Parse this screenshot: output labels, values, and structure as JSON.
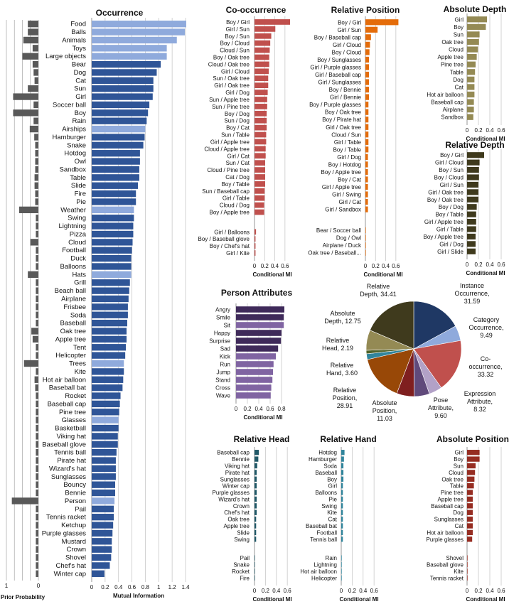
{
  "chart_data": [
    {
      "type": "bar",
      "panel": "prior",
      "xlabel": "Prior Probability",
      "xlim": [
        1,
        0
      ],
      "xticks": [
        "1",
        "0"
      ],
      "grid": true,
      "color": "#595959",
      "categories": [
        "Food",
        "Balls",
        "Animals",
        "Toys",
        "Large objects",
        "Bear",
        "Dog",
        "Cat",
        "Sun",
        "Girl",
        "Soccer ball",
        "Boy",
        "Rain",
        "Airships",
        "Hamburger",
        "Snake",
        "Hotdog",
        "Owl",
        "Sandbox",
        "Table",
        "Slide",
        "Fire",
        "Pie",
        "Weather",
        "Swing",
        "Lightning",
        "Pizza",
        "Cloud",
        "Football",
        "Duck",
        "Balloons",
        "Hats",
        "Grill",
        "Beach ball",
        "Airplane",
        "Frisbee",
        "Soda",
        "Baseball",
        "Oak tree",
        "Apple tree",
        "Tent",
        "Helicopter",
        "Trees",
        "Kite",
        "Hot air balloon",
        "Baseball bat",
        "Rocket",
        "Baseball cap",
        "Pine tree",
        "Glasses",
        "Basketball",
        "Viking hat",
        "Baseball glove",
        "Tennis ball",
        "Pirate hat",
        "Wizard's hat",
        "Sunglasses",
        "Bouncy",
        "Bennie",
        "Person",
        "Pail",
        "Tennis racket",
        "Ketchup",
        "Purple glasses",
        "Mustard",
        "Crown",
        "Shovel",
        "Chef's hat",
        "Winter cap"
      ],
      "values": [
        0.33,
        0.33,
        0.47,
        0.18,
        0.5,
        0.18,
        0.15,
        0.12,
        0.33,
        0.79,
        0.15,
        0.79,
        0.15,
        0.27,
        0.13,
        0.1,
        0.1,
        0.1,
        0.1,
        0.12,
        0.12,
        0.1,
        0.1,
        0.6,
        0.08,
        0.08,
        0.08,
        0.25,
        0.08,
        0.08,
        0.08,
        0.33,
        0.08,
        0.08,
        0.08,
        0.08,
        0.08,
        0.08,
        0.22,
        0.18,
        0.08,
        0.08,
        0.45,
        0.08,
        0.12,
        0.1,
        0.08,
        0.08,
        0.08,
        0.08,
        0.08,
        0.08,
        0.08,
        0.08,
        0.08,
        0.08,
        0.08,
        0.08,
        0.08,
        0.83,
        0.08,
        0.08,
        0.08,
        0.08,
        0.08,
        0.08,
        0.08,
        0.08,
        0.08
      ]
    },
    {
      "type": "bar",
      "panel": "occurrence",
      "title": "Occurrence",
      "xlabel": "Mutual Information",
      "xlim": [
        0,
        1.4
      ],
      "xticks": [
        "0",
        "0.2",
        "0.4",
        "0.6",
        "0.8",
        "1",
        "1.2",
        "1.4"
      ],
      "grid": true,
      "dark_color": "#2f5597",
      "light_color": "#8faadc",
      "light_categories": [
        "Food",
        "Balls",
        "Animals",
        "Toys",
        "Large objects",
        "Airships",
        "Weather",
        "Hats",
        "Trees",
        "Glasses",
        "Person"
      ],
      "categories": [
        "Food",
        "Balls",
        "Animals",
        "Toys",
        "Large objects",
        "Bear",
        "Dog",
        "Cat",
        "Sun",
        "Girl",
        "Soccer ball",
        "Boy",
        "Rain",
        "Airships",
        "Hamburger",
        "Snake",
        "Hotdog",
        "Owl",
        "Sandbox",
        "Table",
        "Slide",
        "Fire",
        "Pie",
        "Weather",
        "Swing",
        "Lightning",
        "Pizza",
        "Cloud",
        "Football",
        "Duck",
        "Balloons",
        "Hats",
        "Grill",
        "Beach ball",
        "Airplane",
        "Frisbee",
        "Soda",
        "Baseball",
        "Oak tree",
        "Apple tree",
        "Tent",
        "Helicopter",
        "Trees",
        "Kite",
        "Hot air balloon",
        "Baseball bat",
        "Rocket",
        "Baseball cap",
        "Pine tree",
        "Glasses",
        "Basketball",
        "Viking hat",
        "Baseball glove",
        "Tennis ball",
        "Pirate hat",
        "Wizard's hat",
        "Sunglasses",
        "Bouncy",
        "Bennie",
        "Person",
        "Pail",
        "Tennis racket",
        "Ketchup",
        "Purple glasses",
        "Mustard",
        "Crown",
        "Shovel",
        "Chef's hat",
        "Winter cap"
      ],
      "values": [
        1.41,
        1.39,
        1.27,
        1.12,
        1.12,
        1.03,
        0.97,
        0.92,
        0.92,
        0.91,
        0.86,
        0.84,
        0.82,
        0.8,
        0.79,
        0.77,
        0.72,
        0.72,
        0.71,
        0.71,
        0.69,
        0.66,
        0.66,
        0.63,
        0.63,
        0.62,
        0.62,
        0.61,
        0.6,
        0.59,
        0.59,
        0.59,
        0.57,
        0.56,
        0.55,
        0.54,
        0.54,
        0.53,
        0.52,
        0.52,
        0.51,
        0.5,
        0.48,
        0.48,
        0.47,
        0.46,
        0.43,
        0.42,
        0.41,
        0.4,
        0.4,
        0.39,
        0.39,
        0.37,
        0.36,
        0.36,
        0.36,
        0.35,
        0.35,
        0.34,
        0.33,
        0.33,
        0.32,
        0.31,
        0.3,
        0.3,
        0.29,
        0.27,
        0.19
      ]
    },
    {
      "type": "bar",
      "panel": "co-occurrence",
      "title": "Co-occurrence",
      "xlabel": "Conditional MI",
      "xlim": [
        0,
        0.7
      ],
      "xticks": [
        "0",
        "0.2",
        "0.4",
        "0.6"
      ],
      "grid": true,
      "color": "#c0504d",
      "groups": [
        {
          "categories": [
            "Boy / Girl",
            "Girl / Sun",
            "Boy / Sun",
            "Boy / Cloud",
            "Cloud / Sun",
            "Boy / Oak tree",
            "Cloud / Oak tree",
            "Girl / Cloud",
            "Sun / Oak tree",
            "Girl / Oak tree",
            "Girl / Dog",
            "Sun / Apple tree",
            "Sun / Pine tree",
            "Boy / Dog",
            "Sun / Dog",
            "Boy / Cat",
            "Sun / Table",
            "Girl / Apple tree",
            "Cloud / Apple tree",
            "Girl / Cat",
            "Sun / Cat",
            "Cloud / Pine tree",
            "Cat / Dog",
            "Boy / Table",
            "Sun / Baseball cap",
            "Girl / Table",
            "Cloud / Dog",
            "Boy / Apple tree"
          ],
          "values": [
            0.7,
            0.41,
            0.33,
            0.31,
            0.3,
            0.29,
            0.29,
            0.28,
            0.27,
            0.27,
            0.26,
            0.25,
            0.25,
            0.24,
            0.24,
            0.24,
            0.23,
            0.23,
            0.22,
            0.22,
            0.21,
            0.21,
            0.21,
            0.21,
            0.2,
            0.2,
            0.19,
            0.19
          ]
        },
        {
          "categories": [
            "Girl / Balloons",
            "Boy / Baseball glove",
            "Boy / Chef's hat",
            "Girl / Kite"
          ],
          "values": [
            0.03,
            0.02,
            0.02,
            0.02
          ]
        }
      ]
    },
    {
      "type": "bar",
      "panel": "relative-position",
      "title": "Relative Position",
      "xlabel": "Conditional MI",
      "xlim": [
        0,
        0.7
      ],
      "xticks": [
        "0",
        "0.2",
        "0.4",
        "0.6"
      ],
      "grid": true,
      "color": "#e46c0a",
      "groups": [
        {
          "categories": [
            "Boy / Girl",
            "Girl / Sun",
            "Boy / Baseball cap",
            "Girl / Cloud",
            "Boy / Cloud",
            "Boy / Sunglasses",
            "Girl / Purple glasses",
            "Girl / Baseball cap",
            "Girl / Sunglasses",
            "Boy / Bennie",
            "Girl / Bennie",
            "Boy / Purple glasses",
            "Boy / Oak tree",
            "Boy / Pirate hat",
            "Girl / Oak tree",
            "Cloud / Sun",
            "Girl / Table",
            "Boy / Table",
            "Girl / Dog",
            "Boy / Hotdog",
            "Boy / Apple tree",
            "Boy / Cat",
            "Girl / Apple tree",
            "Girl / Swing",
            "Girl / Cat",
            "Girl / Sandbox"
          ],
          "values": [
            0.65,
            0.24,
            0.11,
            0.09,
            0.08,
            0.07,
            0.07,
            0.07,
            0.07,
            0.07,
            0.07,
            0.06,
            0.06,
            0.06,
            0.06,
            0.06,
            0.06,
            0.06,
            0.05,
            0.05,
            0.05,
            0.05,
            0.05,
            0.05,
            0.05,
            0.05
          ]
        },
        {
          "categories": [
            "Bear / Soccer ball",
            "Dog / Owl",
            "Airplane / Duck",
            "Oak tree / Baseball..."
          ],
          "values": [
            0.003,
            0.003,
            0.003,
            0.003
          ]
        }
      ]
    },
    {
      "type": "bar",
      "panel": "absolute-depth",
      "title": "Absolute Depth",
      "xlabel": "Conditional MI",
      "xlim": [
        0,
        0.65
      ],
      "xticks": [
        "0",
        "0.2",
        "0.4",
        "0.6"
      ],
      "grid": true,
      "color": "#948a54",
      "categories": [
        "Girl",
        "Boy",
        "Sun",
        "Oak tree",
        "Cloud",
        "Apple tree",
        "Pine tree",
        "Table",
        "Dog",
        "Cat",
        "Hot air balloon",
        "Baseball cap",
        "Airplane",
        "Sandbox"
      ],
      "values": [
        0.35,
        0.33,
        0.22,
        0.21,
        0.19,
        0.17,
        0.15,
        0.14,
        0.13,
        0.13,
        0.13,
        0.12,
        0.12,
        0.11
      ]
    },
    {
      "type": "bar",
      "panel": "relative-depth",
      "title": "Relative Depth",
      "xlabel": "Conditional MI",
      "xlim": [
        0,
        0.65
      ],
      "xticks": [
        "0",
        "0.2",
        "0.4",
        "0.6"
      ],
      "grid": true,
      "color": "#3f3a1d",
      "categories": [
        "Boy / Girl",
        "Girl / Cloud",
        "Boy / Sun",
        "Boy / Cloud",
        "Girl / Sun",
        "Girl / Oak tree",
        "Boy / Oak tree",
        "Boy / Dog",
        "Boy / Table",
        "Girl / Apple tree",
        "Girl / Table",
        "Boy / Apple tree",
        "Girl / Dog",
        "Girl / Slide"
      ],
      "values": [
        0.3,
        0.22,
        0.21,
        0.21,
        0.2,
        0.2,
        0.2,
        0.17,
        0.16,
        0.16,
        0.16,
        0.15,
        0.15,
        0.15
      ]
    },
    {
      "type": "bar",
      "panel": "person-attributes",
      "title": "Person Attributes",
      "xlabel": "Conditional MI",
      "xlim": [
        0,
        0.95
      ],
      "xticks": [
        "0",
        "0.2",
        "0.4",
        "0.6",
        "0.8"
      ],
      "grid": true,
      "dark_color": "#3f2a5a",
      "light_color": "#8064a2",
      "dark_categories": [
        "Angry",
        "Smile",
        "Happy",
        "Surprise",
        "Sad"
      ],
      "categories": [
        "Angry",
        "Smile",
        "Sit",
        "Happy",
        "Surprise",
        "Sad",
        "Kick",
        "Run",
        "Jump",
        "Stand",
        "Cross",
        "Wave"
      ],
      "values": [
        0.85,
        0.84,
        0.84,
        0.8,
        0.79,
        0.74,
        0.7,
        0.66,
        0.65,
        0.64,
        0.62,
        0.61
      ]
    },
    {
      "type": "pie",
      "panel": "mi-breakdown",
      "labels": [
        "Instance Occurrence",
        "Category Occurrence",
        "Co-occurrence",
        "Expression Attribute",
        "Pose Attribute",
        "Absolute Position",
        "Relative Position",
        "Relative Hand",
        "Relative Head",
        "Absolute Depth",
        "Relative Depth"
      ],
      "label_text": [
        "Instance\nOccurrence,\n31.59",
        "Category\nOccurrence,\n9.49",
        "Co-\noccurrence,\n33.32",
        "Expression\nAttribute,\n8.32",
        "Pose\nAttribute,\n9.60",
        "Absolute\nPosition,\n11.03",
        "Relative\nPosition,\n28.91",
        "Relative\nHand, 3.60",
        "Relative\nHead, 2.19",
        "Absolute\nDepth, 12.75",
        "Relative\nDepth, 34.41"
      ],
      "values": [
        31.59,
        9.49,
        33.32,
        8.32,
        9.6,
        11.03,
        28.91,
        3.6,
        2.19,
        12.75,
        34.41
      ],
      "colors": [
        "#1f3864",
        "#8faadc",
        "#c0504d",
        "#b2a1c7",
        "#604a7b",
        "#7f1f1f",
        "#984807",
        "#31859c",
        "#4f6228",
        "#948a54",
        "#3f3a1d"
      ]
    },
    {
      "type": "bar",
      "panel": "relative-head",
      "title": "Relative Head",
      "xlabel": "Conditional MI",
      "xlim": [
        0,
        0.65
      ],
      "xticks": [
        "0",
        "0.2",
        "0.4",
        "0.6"
      ],
      "grid": true,
      "color": "#205867",
      "groups": [
        {
          "categories": [
            "Baseball cap",
            "Bennie",
            "Viking hat",
            "Pirate hat",
            "Sunglasses",
            "Winter cap",
            "Purple glasses",
            "Wizard's hat",
            "Crown",
            "Chef's hat",
            "Oak tree",
            "Apple tree",
            "Slide",
            "Swing"
          ],
          "values": [
            0.08,
            0.07,
            0.05,
            0.04,
            0.04,
            0.04,
            0.04,
            0.04,
            0.04,
            0.04,
            0.03,
            0.03,
            0.03,
            0.03
          ]
        },
        {
          "categories": [
            "Pail",
            "Snake",
            "Rocket",
            "Fire"
          ],
          "values": [
            0.002,
            0.002,
            0.002,
            0.002
          ]
        }
      ]
    },
    {
      "type": "bar",
      "panel": "relative-hand",
      "title": "Relative Hand",
      "xlabel": "Conditional MI",
      "xlim": [
        0,
        0.65
      ],
      "xticks": [
        "0",
        "0.2",
        "0.4",
        "0.6"
      ],
      "grid": true,
      "color": "#31859c",
      "groups": [
        {
          "categories": [
            "Hotdog",
            "Hamburger",
            "Soda",
            "Baseball",
            "Boy",
            "Girl",
            "Balloons",
            "Pie",
            "Swing",
            "Kite",
            "Cat",
            "Baseball bat",
            "Football",
            "Tennis ball"
          ],
          "values": [
            0.06,
            0.05,
            0.04,
            0.04,
            0.04,
            0.03,
            0.03,
            0.03,
            0.03,
            0.03,
            0.03,
            0.03,
            0.03,
            0.03
          ]
        },
        {
          "categories": [
            "Rain",
            "Lightning",
            "Hot air balloon",
            "Helicopter"
          ],
          "values": [
            0.002,
            0.002,
            0.002,
            0.002
          ]
        }
      ]
    },
    {
      "type": "bar",
      "panel": "absolute-position",
      "title": "Absolute Position",
      "xlabel": "Conditional MI",
      "xlim": [
        0,
        0.65
      ],
      "xticks": [
        "0",
        "0.2",
        "0.4",
        "0.6"
      ],
      "grid": true,
      "color": "#962d22",
      "groups": [
        {
          "categories": [
            "Girl",
            "Boy",
            "Sun",
            "Cloud",
            "Oak tree",
            "Table",
            "Pine tree",
            "Apple tree",
            "Baseball cap",
            "Dog",
            "Sunglasses",
            "Cat",
            "Hot air balloon",
            "Purple glasses"
          ],
          "values": [
            0.22,
            0.22,
            0.15,
            0.14,
            0.13,
            0.12,
            0.1,
            0.1,
            0.1,
            0.1,
            0.1,
            0.1,
            0.1,
            0.09
          ]
        },
        {
          "categories": [
            "Shovel",
            "Baseball glove",
            "Kite",
            "Tennis racket"
          ],
          "values": [
            0.005,
            0.005,
            0.005,
            0.005
          ]
        }
      ]
    }
  ]
}
